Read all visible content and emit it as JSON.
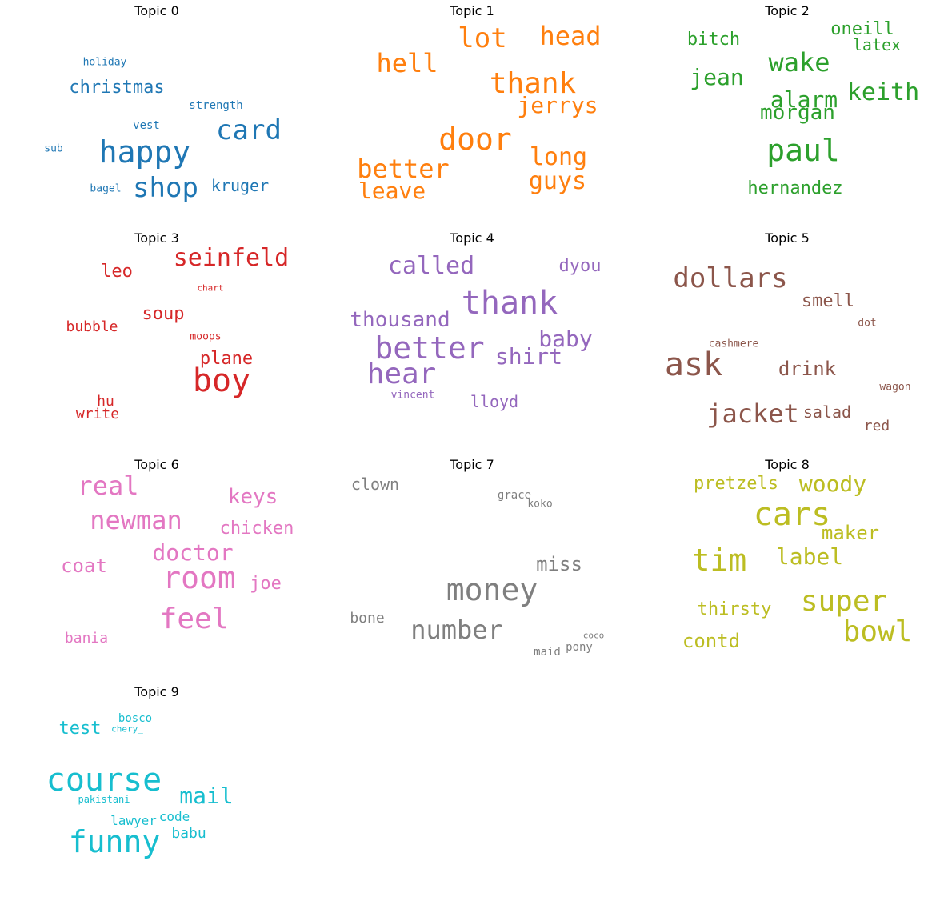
{
  "chart_data": {
    "type": "wordcloud",
    "grid": "4x3",
    "axis": "off",
    "topics": [
      {
        "title": "Topic 0",
        "color": "#1f77b4",
        "words": [
          "happy",
          "card",
          "shop",
          "christmas",
          "kruger",
          "strength",
          "vest",
          "holiday",
          "bagel",
          "sub"
        ]
      },
      {
        "title": "Topic 1",
        "color": "#ff7f0e",
        "words": [
          "door",
          "thank",
          "lot",
          "head",
          "hell",
          "jerrys",
          "better",
          "long",
          "guys",
          "leave"
        ]
      },
      {
        "title": "Topic 2",
        "color": "#2ca02c",
        "words": [
          "paul",
          "wake",
          "alarm",
          "keith",
          "jean",
          "morgan",
          "bitch",
          "oneill",
          "latex",
          "hernandez"
        ]
      },
      {
        "title": "Topic 3",
        "color": "#d62728",
        "words": [
          "boy",
          "seinfeld",
          "leo",
          "soup",
          "plane",
          "bubble",
          "moops",
          "chart",
          "hu",
          "write"
        ]
      },
      {
        "title": "Topic 4",
        "color": "#9467bd",
        "words": [
          "thank",
          "better",
          "hear",
          "called",
          "thousand",
          "baby",
          "shirt",
          "dyou",
          "lloyd",
          "vincent"
        ]
      },
      {
        "title": "Topic 5",
        "color": "#8c564b",
        "words": [
          "ask",
          "dollars",
          "jacket",
          "drink",
          "smell",
          "salad",
          "red",
          "cashmere",
          "dot",
          "wagon"
        ]
      },
      {
        "title": "Topic 6",
        "color": "#e377c2",
        "words": [
          "room",
          "feel",
          "newman",
          "real",
          "doctor",
          "keys",
          "chicken",
          "coat",
          "joe",
          "bania"
        ]
      },
      {
        "title": "Topic 7",
        "color": "#7f7f7f",
        "words": [
          "money",
          "number",
          "miss",
          "clown",
          "grace",
          "koko",
          "bone",
          "maid",
          "pony",
          "coco"
        ]
      },
      {
        "title": "Topic 8",
        "color": "#bcbd22",
        "words": [
          "cars",
          "tim",
          "super",
          "bowl",
          "woody",
          "label",
          "maker",
          "pretzels",
          "thirsty",
          "contd"
        ]
      },
      {
        "title": "Topic 9",
        "color": "#17becf",
        "words": [
          "course",
          "funny",
          "mail",
          "test",
          "bosco",
          "chery_",
          "pakistani",
          "lawyer",
          "code",
          "babu"
        ]
      }
    ]
  }
}
